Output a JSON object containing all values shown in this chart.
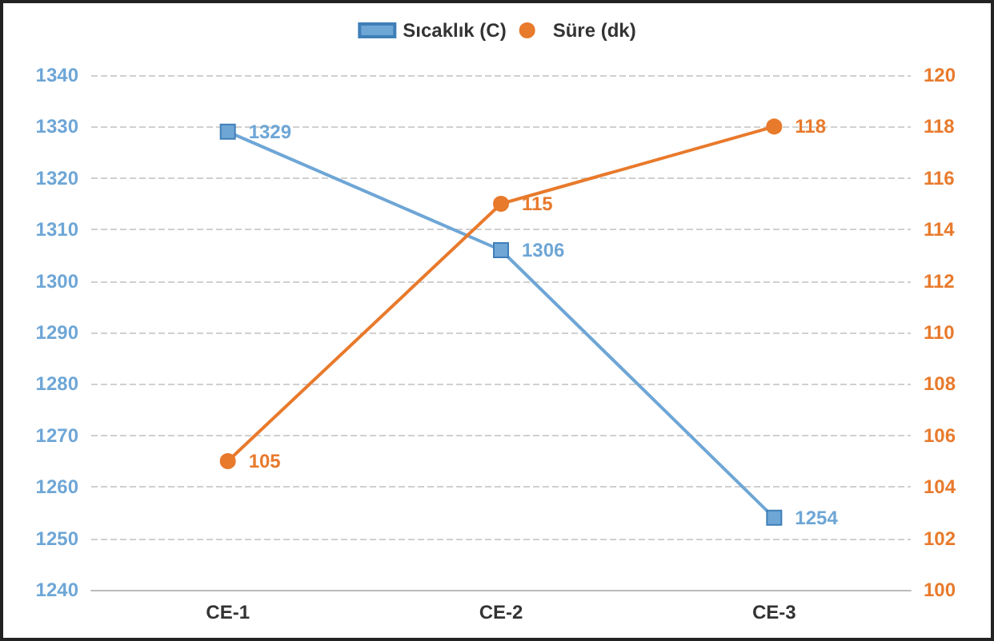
{
  "chart_data": {
    "type": "line",
    "categories": [
      "CE-1",
      "CE-2",
      "CE-3"
    ],
    "series": [
      {
        "name": "Sıcaklık (C)",
        "color": "#6ea6d6",
        "values": [
          1329,
          1306,
          1254
        ],
        "marker": "square"
      },
      {
        "name": "Süre (dk)",
        "color": "#e87a2c",
        "values": [
          105,
          115,
          118
        ],
        "axis": "y2",
        "marker": "circle"
      }
    ],
    "ylim": [
      1240,
      1340
    ],
    "yticks": [
      1240,
      1250,
      1260,
      1270,
      1280,
      1290,
      1300,
      1310,
      1320,
      1330,
      1340
    ],
    "y2lim": [
      100,
      120
    ],
    "y2ticks": [
      100,
      102,
      104,
      106,
      108,
      110,
      112,
      114,
      116,
      118,
      120
    ],
    "data_labels": true,
    "grid": "y",
    "legend": "top",
    "line_style": "solid"
  }
}
